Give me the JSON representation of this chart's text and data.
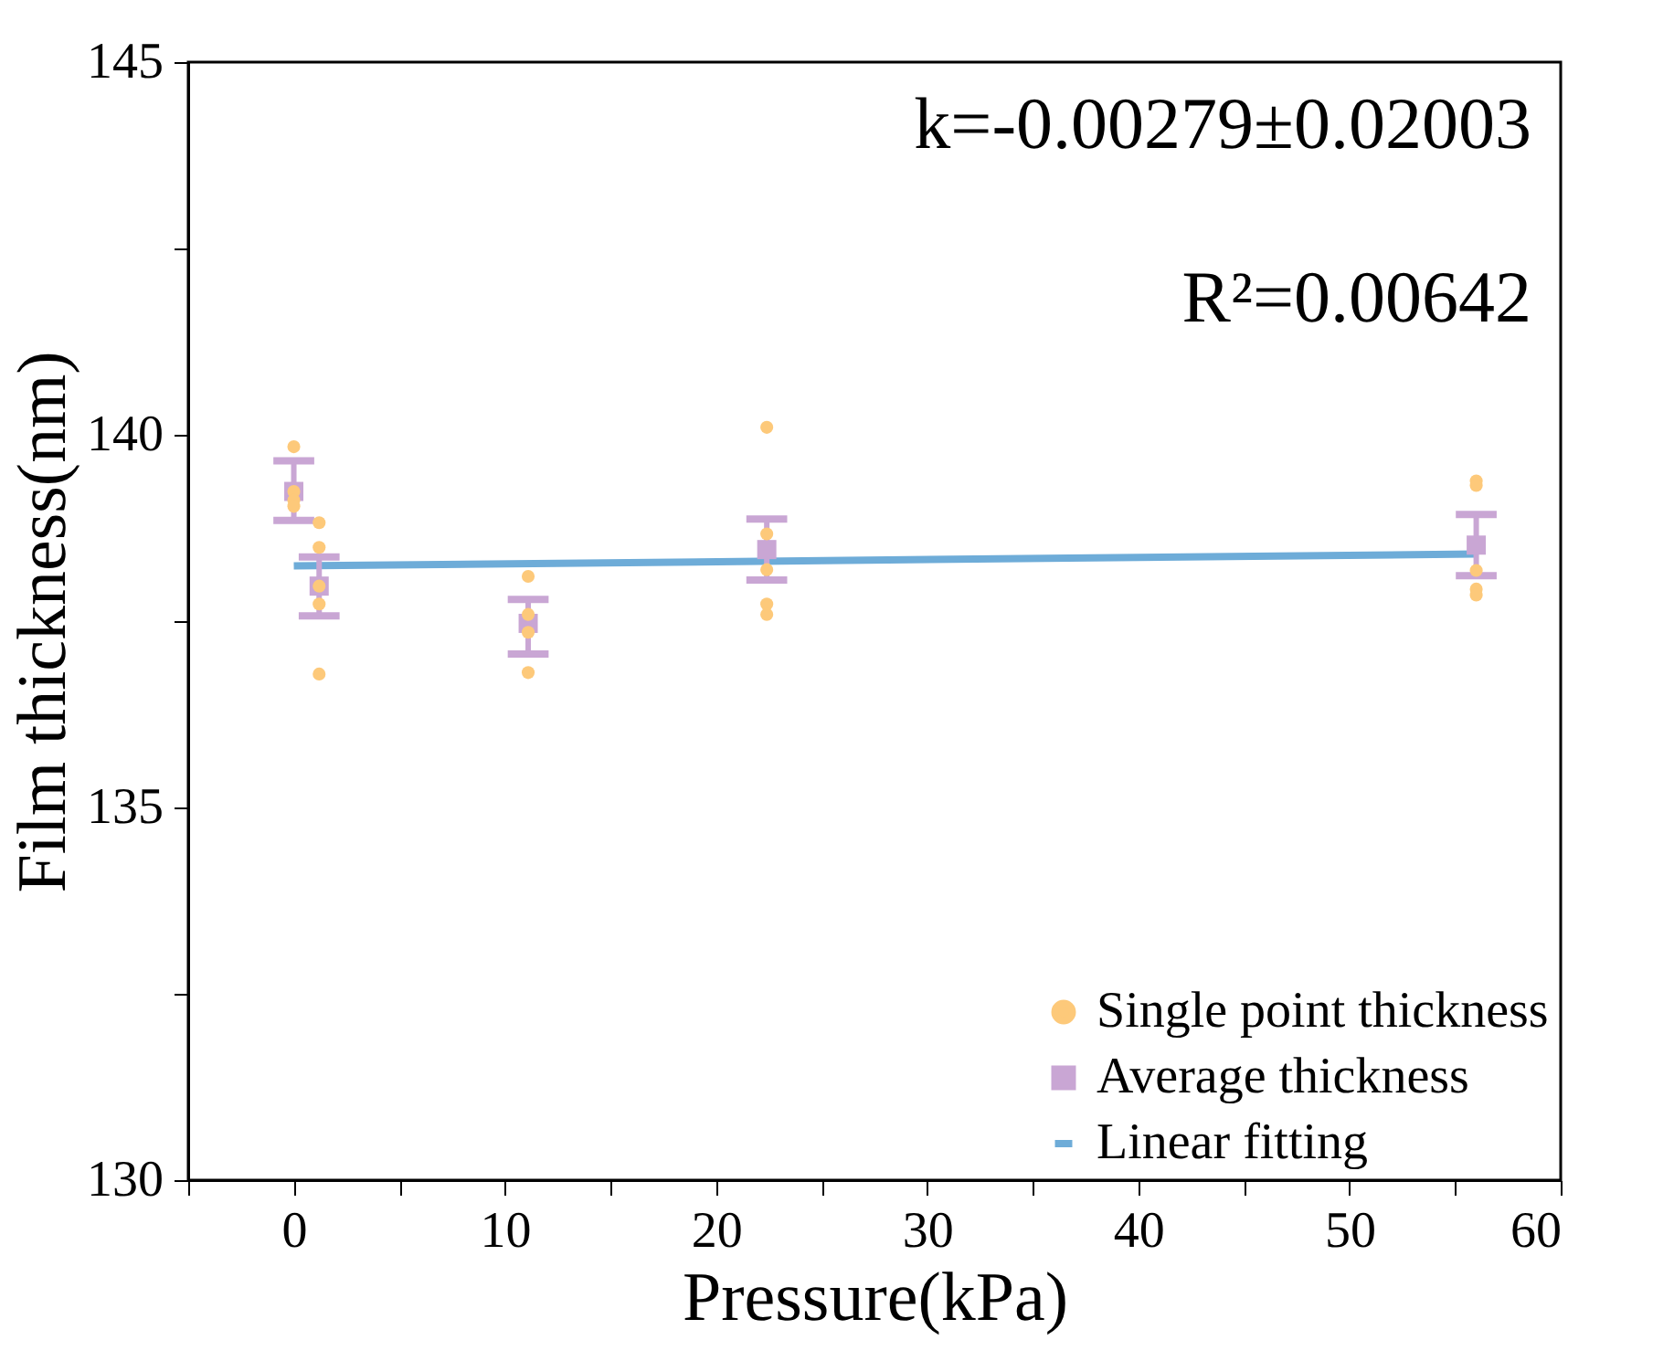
{
  "chart_data": {
    "type": "scatter",
    "xlabel": "Pressure(kPa)",
    "ylabel": "Film thickness(nm)",
    "xlim": [
      -5,
      60
    ],
    "ylim": [
      130,
      145
    ],
    "xticks": [
      {
        "value": -5,
        "label": null
      },
      0,
      {
        "value": 5,
        "label": null
      },
      10,
      {
        "value": 15,
        "label": null
      },
      20,
      {
        "value": 25,
        "label": null
      },
      30,
      {
        "value": 35,
        "label": null
      },
      40,
      {
        "value": 45,
        "label": null
      },
      50,
      {
        "value": 55,
        "label": null
      },
      60
    ],
    "yticks": [
      130,
      {
        "value": 132.5,
        "label": null
      },
      135,
      {
        "value": 137.5,
        "label": null
      },
      140,
      {
        "value": 142.5,
        "label": null
      },
      145
    ],
    "legend": "bottom right",
    "grid": false,
    "annotations": [
      "k=-0.00279±0.02003",
      "R²=0.00642"
    ],
    "series": [
      {
        "name": "Single point thickness",
        "marker": "circle",
        "color": "#fdc97a",
        "x": [
          0,
          0,
          0,
          0,
          1.2,
          1.2,
          1.2,
          1.2,
          1.2,
          11.1,
          11.1,
          11.1,
          11.1,
          22.4,
          22.4,
          22.4,
          22.4,
          22.4,
          56,
          56,
          56,
          56,
          56
        ],
        "values": [
          139.84,
          139.24,
          139.12,
          139.04,
          138.82,
          138.49,
          137.97,
          137.73,
          136.79,
          138.1,
          137.59,
          137.35,
          136.81,
          140.1,
          138.67,
          138.19,
          137.73,
          137.59,
          139.38,
          139.32,
          138.18,
          137.93,
          137.85
        ]
      },
      {
        "name": "Average thickness",
        "marker": "square",
        "color": "#c9a6d4",
        "x": [
          0,
          1.2,
          11.1,
          22.4,
          56
        ],
        "values": [
          139.24,
          137.97,
          137.47,
          138.46,
          138.52
        ],
        "errors": [
          [
            138.85,
            139.65
          ],
          [
            137.57,
            138.36
          ],
          [
            137.06,
            137.79
          ],
          [
            138.05,
            138.87
          ],
          [
            138.11,
            138.93
          ]
        ]
      },
      {
        "name": "Linear fitting",
        "type": "line",
        "marker": "none",
        "color": "#6eacd8",
        "x": [
          0,
          56
        ],
        "values": [
          138.24,
          138.4
        ]
      }
    ]
  }
}
